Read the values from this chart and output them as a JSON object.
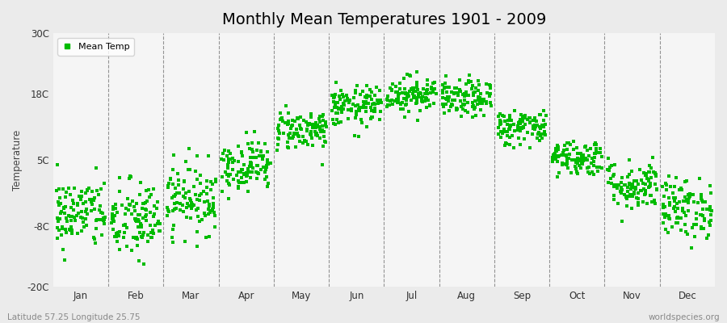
{
  "title": "Monthly Mean Temperatures 1901 - 2009",
  "ylabel": "Temperature",
  "xlabel_bottom_left": "Latitude 57.25 Longitude 25.75",
  "xlabel_bottom_right": "worldspecies.org",
  "ylim": [
    -20,
    30
  ],
  "yticks": [
    -20,
    -8,
    5,
    18,
    30
  ],
  "ytick_labels": [
    "-20C",
    "-8C",
    "5C",
    "18C",
    "30C"
  ],
  "months": [
    "Jan",
    "Feb",
    "Mar",
    "Apr",
    "May",
    "Jun",
    "Jul",
    "Aug",
    "Sep",
    "Oct",
    "Nov",
    "Dec"
  ],
  "dot_color": "#00BB00",
  "background_color": "#EBEBEB",
  "plot_bg_color": "#F5F5F5",
  "title_fontsize": 14,
  "legend_label": "Mean Temp",
  "n_years": 109,
  "monthly_means": [
    -5.5,
    -7.0,
    -2.5,
    4.0,
    11.0,
    15.5,
    18.0,
    17.0,
    11.5,
    5.5,
    0.0,
    -4.5
  ],
  "monthly_stds": [
    3.5,
    4.0,
    3.5,
    2.5,
    2.0,
    2.0,
    1.8,
    1.8,
    1.8,
    1.8,
    2.5,
    3.0
  ]
}
